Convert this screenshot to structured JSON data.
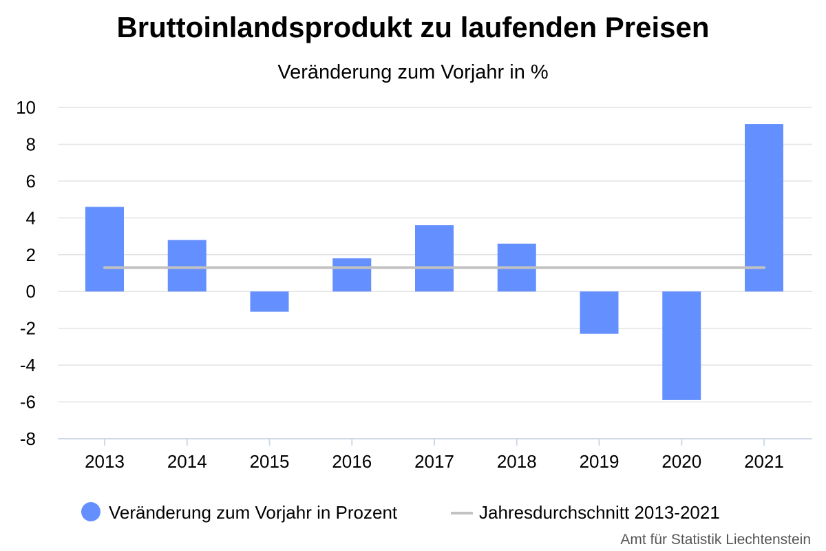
{
  "chart_data": {
    "type": "bar",
    "title": "Bruttoinlandsprodukt zu laufenden Preisen",
    "subtitle": "Veränderung zum Vorjahr in %",
    "xlabel": "",
    "ylabel": "",
    "categories": [
      "2013",
      "2014",
      "2015",
      "2016",
      "2017",
      "2018",
      "2019",
      "2020",
      "2021"
    ],
    "series": [
      {
        "name": "Veränderung zum Vorjahr in Prozent",
        "type": "bar",
        "color": "#648fff",
        "values": [
          4.6,
          2.8,
          -1.1,
          1.8,
          3.6,
          2.6,
          -2.3,
          -5.9,
          9.1
        ]
      },
      {
        "name": "Jahresdurchschnitt 2013-2021",
        "type": "line",
        "color": "#c2c2c2",
        "values": [
          1.3,
          1.3,
          1.3,
          1.3,
          1.3,
          1.3,
          1.3,
          1.3,
          1.3
        ]
      }
    ],
    "ylim": [
      -8,
      10
    ],
    "yticks": [
      "10",
      "8",
      "6",
      "4",
      "2",
      "0",
      "-2",
      "-4",
      "-6",
      "-8"
    ],
    "grid": true,
    "legend_position": "bottom"
  },
  "credit": "Amt für Statistik Liechtenstein"
}
